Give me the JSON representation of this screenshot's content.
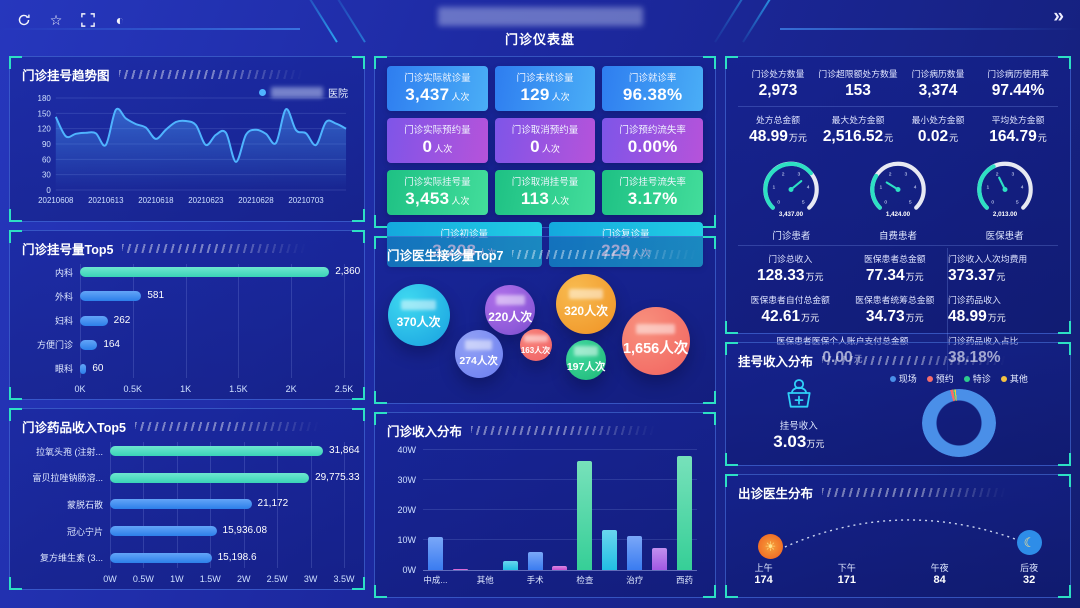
{
  "header": {
    "dashboard_title": "门诊仪表盘",
    "hospital_name_masked": true,
    "icons": [
      {
        "name": "refresh-icon"
      },
      {
        "name": "star-icon"
      },
      {
        "name": "fullscreen-icon"
      },
      {
        "name": "contrast-icon"
      }
    ],
    "collapse_glyph": "»"
  },
  "colors": {
    "accent_teal": "#2de0c4",
    "accent_blue": "#4fb4ff",
    "bar_blue": "#2f86f6",
    "bar_teal": "#3ddec0",
    "panel_border": "#3a63d8"
  },
  "panels": {
    "trend": {
      "title": "门诊挂号趋势图",
      "legend": {
        "masked": true,
        "suffix": "医院",
        "dot_color": "#4fb4ff"
      }
    },
    "reg_top5": {
      "title": "门诊挂号量Top5"
    },
    "drug_top5": {
      "title": "门诊药品收入Top5"
    },
    "doctor_top7": {
      "title": "门诊医生接诊量Top7"
    },
    "income_dist": {
      "title": "门诊收入分布"
    },
    "reg_income": {
      "title": "挂号收入分布",
      "icon": "registration-income-icon",
      "label": "挂号收入",
      "value": "3.03",
      "unit": "万元"
    },
    "doctor_dist": {
      "title": "出诊医生分布"
    },
    "kpis": {
      "rows": [
        {
          "theme": "blue",
          "cards": [
            {
              "label": "门诊实际就诊量",
              "value": "3,437",
              "unit": "人次"
            },
            {
              "label": "门诊未就诊量",
              "value": "129",
              "unit": "人次"
            },
            {
              "label": "门诊就诊率",
              "value": "96.38%",
              "unit": ""
            }
          ]
        },
        {
          "theme": "purple",
          "cards": [
            {
              "label": "门诊实际预约量",
              "value": "0",
              "unit": "人次"
            },
            {
              "label": "门诊取消预约量",
              "value": "0",
              "unit": "人次"
            },
            {
              "label": "门诊预约流失率",
              "value": "0.00%",
              "unit": ""
            }
          ]
        },
        {
          "theme": "green",
          "cards": [
            {
              "label": "门诊实际挂号量",
              "value": "3,453",
              "unit": "人次"
            },
            {
              "label": "门诊取消挂号量",
              "value": "113",
              "unit": "人次"
            },
            {
              "label": "门诊挂号流失率",
              "value": "3.17%",
              "unit": ""
            }
          ]
        },
        {
          "theme": "cyan",
          "cards": [
            {
              "label": "门诊初诊量",
              "value": "3,208",
              "unit": "人次"
            },
            {
              "label": "门诊复诊量",
              "value": "229",
              "unit": "人次"
            }
          ]
        }
      ]
    },
    "right_stats": {
      "rows4": [
        [
          {
            "label": "门诊处方数量",
            "value": "2,973",
            "unit": ""
          },
          {
            "label": "门诊超限额处方数量",
            "value": "153",
            "unit": ""
          },
          {
            "label": "门诊病历数量",
            "value": "3,374",
            "unit": ""
          },
          {
            "label": "门诊病历使用率",
            "value": "97.44%",
            "unit": ""
          }
        ],
        [
          {
            "label": "处方总金额",
            "value": "48.99",
            "unit": "万元"
          },
          {
            "label": "最大处方金额",
            "value": "2,516.52",
            "unit": "元"
          },
          {
            "label": "最小处方金额",
            "value": "0.02",
            "unit": "元"
          },
          {
            "label": "平均处方金额",
            "value": "164.79",
            "unit": "元"
          }
        ]
      ],
      "rows3_left": [
        [
          {
            "label": "门诊总收入",
            "value": "128.33",
            "unit": "万元"
          },
          {
            "label": "医保患者总金额",
            "value": "77.34",
            "unit": "万元"
          }
        ],
        [
          {
            "label": "医保患者自付总金额",
            "value": "42.61",
            "unit": "万元"
          },
          {
            "label": "医保患者统筹总金额",
            "value": "34.73",
            "unit": "万元"
          }
        ],
        [
          {
            "label": "医保患者医保个人账户支付总金额",
            "value": "0.00",
            "unit": "元"
          }
        ]
      ],
      "rows3_right": [
        {
          "label": "门诊收入人次均费用",
          "value": "373.37",
          "unit": "元"
        },
        {
          "label": "门诊药品收入",
          "value": "48.99",
          "unit": "万元"
        },
        {
          "label": "门诊药品收入占比",
          "value": "38.18%",
          "unit": ""
        }
      ]
    }
  },
  "chart_data": [
    {
      "id": "trend",
      "type": "line",
      "title": "门诊挂号趋势图",
      "series": [
        {
          "name_masked": true,
          "name_suffix": "医院",
          "color": "#4fb4ff",
          "values": [
            143,
            105,
            110,
            112,
            111,
            88,
            157,
            140,
            129,
            122,
            100,
            118,
            133,
            135,
            127,
            88,
            108,
            112,
            55,
            108,
            118,
            110,
            92,
            158,
            117,
            111,
            88,
            133,
            130,
            120
          ]
        }
      ],
      "x_ticks": [
        "20210608",
        "20210613",
        "20210618",
        "20210623",
        "20210628",
        "20210703"
      ],
      "x_tick_step": 5,
      "ylim": [
        0,
        180
      ],
      "y_ticks": [
        0,
        30,
        60,
        90,
        120,
        150,
        180
      ],
      "grid": true,
      "area": true,
      "legend_position": "top-right"
    },
    {
      "id": "reg_top5",
      "type": "bar",
      "orientation": "horizontal",
      "title": "门诊挂号量Top5",
      "categories": [
        "内科",
        "外科",
        "妇科",
        "方便门诊",
        "眼科"
      ],
      "values": [
        2360,
        581,
        262,
        164,
        60
      ],
      "value_labels": [
        "2,360",
        "581",
        "262",
        "164",
        "60"
      ],
      "bar_colors": [
        "#3ddec0",
        "#2f86f6",
        "#2f86f6",
        "#2f86f6",
        "#2f86f6"
      ],
      "x_ticks": [
        "0K",
        "0.5K",
        "1K",
        "1.5K",
        "2K",
        "2.5K"
      ],
      "xlim": [
        0,
        2500
      ],
      "label_width": 58
    },
    {
      "id": "drug_top5",
      "type": "bar",
      "orientation": "horizontal",
      "title": "门诊药品收入Top5",
      "categories": [
        "拉氧头孢 (注射...",
        "雷贝拉唑钠肠溶...",
        "蒙脱石散",
        "冠心宁片",
        "复方维生素 (3..."
      ],
      "values": [
        31864,
        29775.33,
        21172,
        15936.08,
        15198.6
      ],
      "value_labels": [
        "31,864",
        "29,775.33",
        "21,172",
        "15,936.08",
        "15,198.6"
      ],
      "bar_colors": [
        "#3ddec0",
        "#3ddec0",
        "#2f86f6",
        "#2f86f6",
        "#2f86f6"
      ],
      "x_ticks": [
        "0W",
        "0.5W",
        "1W",
        "1.5W",
        "2W",
        "2.5W",
        "3W",
        "3.5W"
      ],
      "xlim": [
        0,
        35000
      ],
      "label_width": 88
    },
    {
      "id": "doctor_top7",
      "type": "bubble",
      "title": "门诊医生接诊量Top7",
      "bubbles": [
        {
          "value": 370,
          "value_label": "370人次",
          "x": 10,
          "y": 38,
          "r": 31,
          "color1": "#3fd9f0",
          "color2": "#18a0e0",
          "name_masked": true
        },
        {
          "value": 220,
          "value_label": "220人次",
          "x": 39,
          "y": 34,
          "r": 25,
          "color1": "#b070ea",
          "color2": "#7d4fd0",
          "name_masked": true
        },
        {
          "value": 320,
          "value_label": "320人次",
          "x": 63,
          "y": 29,
          "r": 30,
          "color1": "#f8bb50",
          "color2": "#ef9224",
          "name_masked": true
        },
        {
          "value": 1656,
          "value_label": "1,656人次",
          "x": 85,
          "y": 58,
          "r": 34,
          "color1": "#f8917e",
          "color2": "#f1625e",
          "name_masked": true
        },
        {
          "value": 274,
          "value_label": "274人次",
          "x": 29,
          "y": 68,
          "r": 24,
          "color1": "#93a2f5",
          "color2": "#6a7df0",
          "name_masked": true
        },
        {
          "value": 163,
          "value_label": "163人次",
          "x": 47,
          "y": 61,
          "r": 16,
          "color1": "#f8847c",
          "color2": "#ef5f63",
          "name_masked": true
        },
        {
          "value": 197,
          "value_label": "197人次",
          "x": 63,
          "y": 72,
          "r": 20,
          "color1": "#43d9a0",
          "color2": "#1cb877",
          "name_masked": true
        }
      ]
    },
    {
      "id": "income_dist",
      "type": "bar",
      "orientation": "vertical",
      "title": "门诊收入分布",
      "categories": [
        "中成...",
        "",
        "其他",
        "",
        "手术",
        "",
        "检查",
        "",
        "治疗",
        "",
        "西药"
      ],
      "values": [
        11,
        0.4,
        0,
        3,
        6,
        1.3,
        36.5,
        13.5,
        11.5,
        7.5,
        38
      ],
      "unit": "W",
      "bar_colors": [
        "#3b7ef5",
        "#d44fd0",
        "#d44fd0",
        "#22c2e8",
        "#3b7ef5",
        "#c94fd4",
        "#37d39a",
        "#22c2e8",
        "#3b7ef5",
        "#a45ae8",
        "#37d39a"
      ],
      "y_ticks": [
        "0W",
        "10W",
        "20W",
        "30W",
        "40W"
      ],
      "ylim": [
        0,
        40
      ]
    },
    {
      "id": "patient_gauges",
      "type": "gauge",
      "max": 5000,
      "color": "#2de0c4",
      "scale_labels": [
        "0",
        "1",
        "2",
        "3",
        "4",
        "5"
      ],
      "gauges": [
        {
          "label": "门诊患者",
          "value": 3437,
          "display": "3,437.00"
        },
        {
          "label": "自费患者",
          "value": 1424,
          "display": "1,424.00"
        },
        {
          "label": "医保患者",
          "value": 2013,
          "display": "2,013.00"
        }
      ]
    },
    {
      "id": "reg_income_donut",
      "type": "pie",
      "donut": true,
      "title": "挂号收入分布",
      "legend": [
        {
          "label": "现场",
          "color": "#4a8fe8"
        },
        {
          "label": "预约",
          "color": "#f56c6c"
        },
        {
          "label": "特诊",
          "color": "#2ecc8e"
        },
        {
          "label": "其他",
          "color": "#f5c242"
        }
      ],
      "slices": [
        {
          "label": "预约",
          "pct": 1.4
        },
        {
          "label": "特诊",
          "pct": 0.6
        },
        {
          "label": "其他",
          "pct": 0.6
        },
        {
          "label": "现场",
          "pct": 97.4
        }
      ]
    },
    {
      "id": "doctor_dist",
      "type": "line",
      "style": "dotted-arc",
      "title": "出诊医生分布",
      "icons": [
        "sun-icon",
        "moon-icon"
      ],
      "points": [
        {
          "label": "上午",
          "value": "174"
        },
        {
          "label": "下午",
          "value": "171"
        },
        {
          "label": "午夜",
          "value": "84"
        },
        {
          "label": "后夜",
          "value": "32"
        }
      ]
    }
  ]
}
